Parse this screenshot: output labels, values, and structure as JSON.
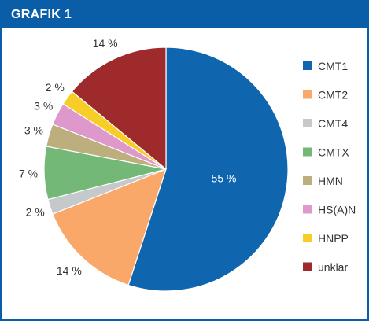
{
  "header": {
    "title": "GRAFIK 1"
  },
  "colors": {
    "header_bg": "#0a5ea8",
    "frame_border": "#0a5ea8"
  },
  "chart_data": {
    "type": "pie",
    "start": "12 o'clock",
    "direction": "clockwise",
    "legend_position": "right",
    "categories": [
      "CMT1",
      "CMT2",
      "CMT4",
      "CMTX",
      "HMN",
      "HS(A)N",
      "HNPP",
      "unklar"
    ],
    "values": [
      55,
      14,
      2,
      7,
      3,
      3,
      2,
      14
    ],
    "labels": [
      "55 %",
      "14 %",
      "2 %",
      "7 %",
      "3 %",
      "3 %",
      "2 %",
      "14 %"
    ],
    "colors": [
      "#0f65ae",
      "#f9a86a",
      "#c5c9cc",
      "#74b878",
      "#bdae7e",
      "#de98cc",
      "#f7cd28",
      "#9e2a2c"
    ]
  }
}
